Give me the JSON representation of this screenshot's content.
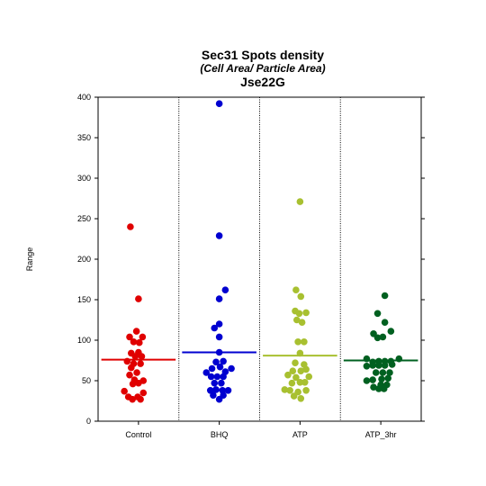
{
  "chart_data": {
    "type": "scatter",
    "title": "Sec31 Spots density",
    "subtitle": "(Cell Area/ Particle Area)",
    "subtitle2": "Jse22G",
    "xlabel": "",
    "ylabel": "Range",
    "ylim": [
      0,
      400
    ],
    "yticks": [
      0,
      50,
      100,
      150,
      200,
      250,
      300,
      350,
      400
    ],
    "categories": [
      "Control",
      "BHQ",
      "ATP",
      "ATP_3hr"
    ],
    "grid": false,
    "separators": "dotted",
    "series": [
      {
        "category": "Control",
        "color": "#e00000",
        "mean": 76,
        "points": [
          {
            "x": -0.2,
            "y": 240
          },
          {
            "x": 0.0,
            "y": 151
          },
          {
            "x": -0.05,
            "y": 111
          },
          {
            "x": -0.22,
            "y": 104
          },
          {
            "x": 0.1,
            "y": 104
          },
          {
            "x": -0.12,
            "y": 98
          },
          {
            "x": 0.02,
            "y": 97
          },
          {
            "x": -0.18,
            "y": 84
          },
          {
            "x": 0.0,
            "y": 85
          },
          {
            "x": -0.08,
            "y": 80
          },
          {
            "x": 0.08,
            "y": 80
          },
          {
            "x": -0.28,
            "y": 74
          },
          {
            "x": -0.12,
            "y": 71
          },
          {
            "x": 0.05,
            "y": 71
          },
          {
            "x": -0.18,
            "y": 66
          },
          {
            "x": -0.04,
            "y": 60
          },
          {
            "x": -0.22,
            "y": 57
          },
          {
            "x": 0.12,
            "y": 50
          },
          {
            "x": -0.1,
            "y": 51
          },
          {
            "x": 0.0,
            "y": 47
          },
          {
            "x": -0.14,
            "y": 46
          },
          {
            "x": -0.35,
            "y": 37
          },
          {
            "x": 0.12,
            "y": 35
          },
          {
            "x": -0.25,
            "y": 30
          },
          {
            "x": -0.02,
            "y": 30
          },
          {
            "x": -0.15,
            "y": 27
          },
          {
            "x": 0.05,
            "y": 27
          }
        ]
      },
      {
        "category": "BHQ",
        "color": "#0000d0",
        "mean": 85,
        "points": [
          {
            "x": 0.0,
            "y": 392
          },
          {
            "x": 0.0,
            "y": 229
          },
          {
            "x": 0.15,
            "y": 162
          },
          {
            "x": 0.0,
            "y": 151
          },
          {
            "x": 0.0,
            "y": 120
          },
          {
            "x": -0.12,
            "y": 115
          },
          {
            "x": 0.0,
            "y": 104
          },
          {
            "x": 0.0,
            "y": 85
          },
          {
            "x": -0.08,
            "y": 73
          },
          {
            "x": 0.1,
            "y": 74
          },
          {
            "x": -0.18,
            "y": 65
          },
          {
            "x": 0.02,
            "y": 67
          },
          {
            "x": 0.3,
            "y": 65
          },
          {
            "x": -0.32,
            "y": 60
          },
          {
            "x": 0.15,
            "y": 61
          },
          {
            "x": -0.2,
            "y": 55
          },
          {
            "x": -0.05,
            "y": 55
          },
          {
            "x": 0.1,
            "y": 55
          },
          {
            "x": -0.12,
            "y": 47
          },
          {
            "x": 0.05,
            "y": 47
          },
          {
            "x": -0.22,
            "y": 38
          },
          {
            "x": -0.08,
            "y": 39
          },
          {
            "x": 0.08,
            "y": 38
          },
          {
            "x": 0.22,
            "y": 38
          },
          {
            "x": -0.15,
            "y": 32
          },
          {
            "x": 0.1,
            "y": 32
          },
          {
            "x": 0.0,
            "y": 27
          }
        ]
      },
      {
        "category": "ATP",
        "color": "#a8c030",
        "mean": 81,
        "points": [
          {
            "x": 0.0,
            "y": 271
          },
          {
            "x": -0.1,
            "y": 162
          },
          {
            "x": 0.02,
            "y": 154
          },
          {
            "x": -0.12,
            "y": 136
          },
          {
            "x": 0.15,
            "y": 134
          },
          {
            "x": -0.02,
            "y": 133
          },
          {
            "x": -0.08,
            "y": 125
          },
          {
            "x": 0.05,
            "y": 122
          },
          {
            "x": -0.05,
            "y": 98
          },
          {
            "x": 0.1,
            "y": 98
          },
          {
            "x": 0.0,
            "y": 84
          },
          {
            "x": -0.12,
            "y": 72
          },
          {
            "x": 0.1,
            "y": 70
          },
          {
            "x": -0.18,
            "y": 62
          },
          {
            "x": 0.02,
            "y": 62
          },
          {
            "x": 0.15,
            "y": 64
          },
          {
            "x": -0.3,
            "y": 57
          },
          {
            "x": -0.1,
            "y": 54
          },
          {
            "x": 0.22,
            "y": 55
          },
          {
            "x": -0.2,
            "y": 47
          },
          {
            "x": 0.0,
            "y": 48
          },
          {
            "x": 0.12,
            "y": 48
          },
          {
            "x": -0.38,
            "y": 39
          },
          {
            "x": -0.25,
            "y": 38
          },
          {
            "x": -0.05,
            "y": 36
          },
          {
            "x": 0.15,
            "y": 38
          },
          {
            "x": -0.15,
            "y": 31
          },
          {
            "x": 0.02,
            "y": 28
          }
        ]
      },
      {
        "category": "ATP_3hr",
        "color": "#006020",
        "mean": 75,
        "points": [
          {
            "x": 0.1,
            "y": 155
          },
          {
            "x": -0.08,
            "y": 133
          },
          {
            "x": 0.1,
            "y": 122
          },
          {
            "x": -0.18,
            "y": 108
          },
          {
            "x": 0.25,
            "y": 111
          },
          {
            "x": -0.08,
            "y": 103
          },
          {
            "x": 0.05,
            "y": 104
          },
          {
            "x": -0.35,
            "y": 77
          },
          {
            "x": 0.45,
            "y": 77
          },
          {
            "x": -0.2,
            "y": 73
          },
          {
            "x": -0.05,
            "y": 74
          },
          {
            "x": 0.1,
            "y": 74
          },
          {
            "x": 0.25,
            "y": 74
          },
          {
            "x": -0.35,
            "y": 68
          },
          {
            "x": -0.2,
            "y": 69
          },
          {
            "x": -0.05,
            "y": 69
          },
          {
            "x": 0.1,
            "y": 69
          },
          {
            "x": 0.28,
            "y": 70
          },
          {
            "x": -0.12,
            "y": 60
          },
          {
            "x": 0.05,
            "y": 60
          },
          {
            "x": 0.22,
            "y": 60
          },
          {
            "x": -0.35,
            "y": 50
          },
          {
            "x": -0.2,
            "y": 51
          },
          {
            "x": 0.02,
            "y": 52
          },
          {
            "x": 0.18,
            "y": 53
          },
          {
            "x": -0.18,
            "y": 42
          },
          {
            "x": 0.0,
            "y": 45
          },
          {
            "x": 0.15,
            "y": 45
          },
          {
            "x": -0.05,
            "y": 40
          },
          {
            "x": 0.08,
            "y": 40
          }
        ]
      }
    ]
  }
}
